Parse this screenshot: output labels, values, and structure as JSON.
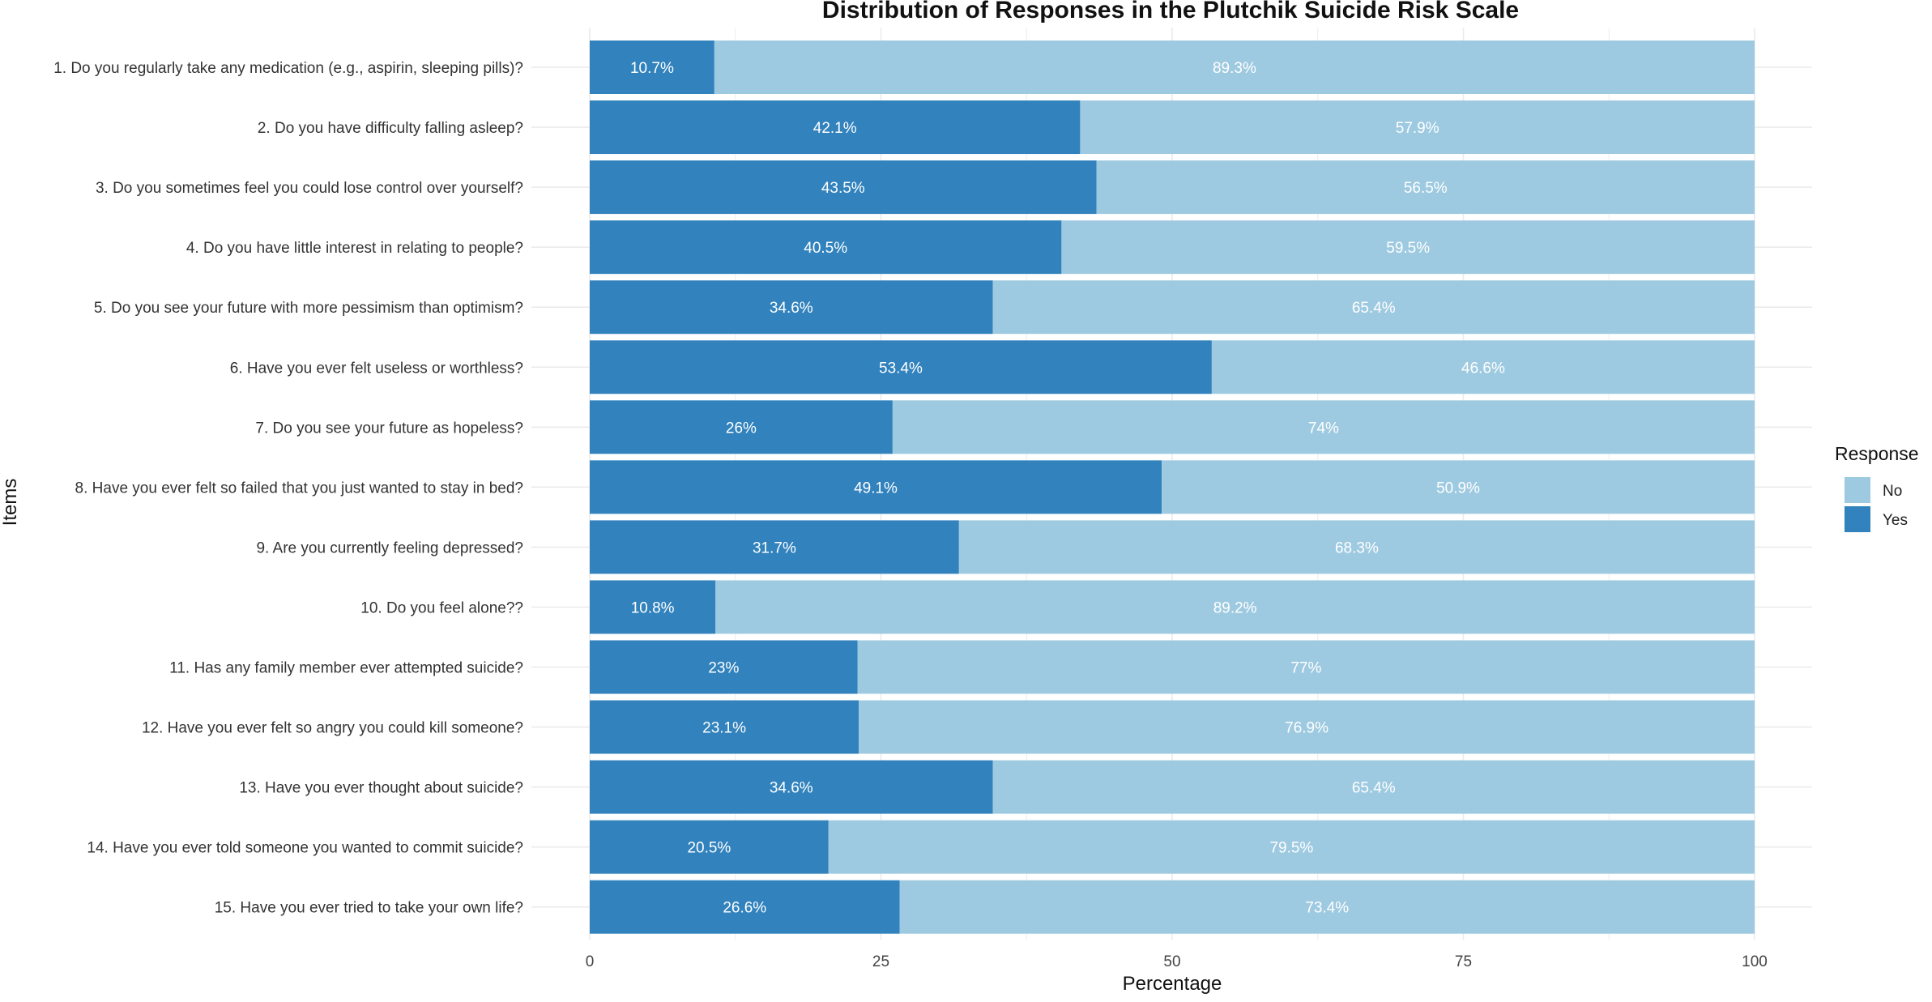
{
  "chart_data": {
    "type": "bar",
    "orientation": "horizontal",
    "stacked": true,
    "title": "Distribution of Responses in the Plutchik Suicide Risk Scale",
    "xlabel": "Percentage",
    "ylabel": "Items",
    "xlim": [
      0,
      100
    ],
    "xticks": [
      "0",
      "25",
      "50",
      "75",
      "100"
    ],
    "grid": true,
    "legend": {
      "title": "Response",
      "position": "right",
      "entries": [
        "No",
        "Yes"
      ]
    },
    "colors": {
      "Yes": "#3182BD",
      "No": "#9ECAE1"
    },
    "categories": [
      "1. Do you regularly take any medication (e.g., aspirin, sleeping pills)?",
      "2. Do you have difficulty falling asleep?",
      "3. Do you sometimes feel you could lose control over yourself?",
      "4. Do you have little interest in relating to people?",
      "5. Do you see your future with more pessimism than optimism?",
      "6. Have you ever felt useless or worthless?",
      "7. Do you see your future as hopeless?",
      "8. Have you ever felt so failed that you just wanted to stay in bed?",
      "9. Are you currently feeling depressed?",
      "10. Do you feel alone??",
      "11. Has any family member ever attempted suicide?",
      "12. Have you ever felt so angry you could kill someone?",
      "13. Have you ever thought about suicide?",
      "14. Have you ever told someone you wanted to commit suicide?",
      "15. Have you ever tried to take your own life?"
    ],
    "series": [
      {
        "name": "Yes",
        "values": [
          10.7,
          42.1,
          43.5,
          40.5,
          34.6,
          53.4,
          26,
          49.1,
          31.7,
          10.8,
          23,
          23.1,
          34.6,
          20.5,
          26.6
        ],
        "labels": [
          "10.7%",
          "42.1%",
          "43.5%",
          "40.5%",
          "34.6%",
          "53.4%",
          "26%",
          "49.1%",
          "31.7%",
          "10.8%",
          "23%",
          "23.1%",
          "34.6%",
          "20.5%",
          "26.6%"
        ]
      },
      {
        "name": "No",
        "values": [
          89.3,
          57.9,
          56.5,
          59.5,
          65.4,
          46.6,
          74,
          50.9,
          68.3,
          89.2,
          77,
          76.9,
          65.4,
          79.5,
          73.4
        ],
        "labels": [
          "89.3%",
          "57.9%",
          "56.5%",
          "59.5%",
          "65.4%",
          "46.6%",
          "74%",
          "50.9%",
          "68.3%",
          "89.2%",
          "77%",
          "76.9%",
          "65.4%",
          "79.5%",
          "73.4%"
        ]
      }
    ]
  }
}
